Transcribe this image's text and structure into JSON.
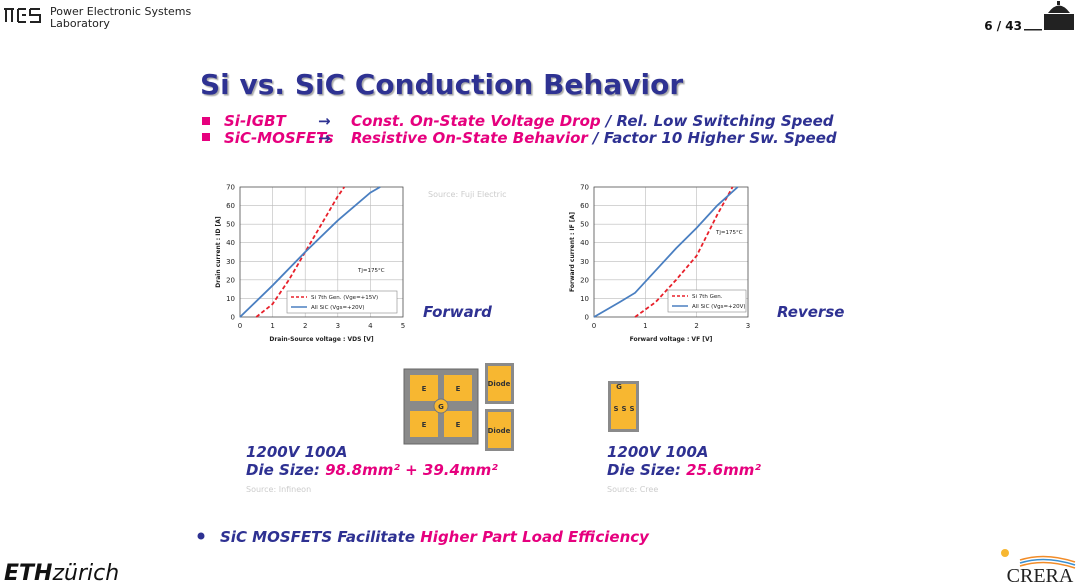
{
  "header": {
    "lab": [
      "Power Electronic Systems",
      "Laboratory"
    ],
    "page": "6 / 43"
  },
  "title": "Si vs. SiC Conduction Behavior",
  "bullets": [
    {
      "term": "Si-IGBT",
      "arrow": "→",
      "highlight": "Const. On-State Voltage Drop",
      "rest": " / Rel. Low Switching Speed"
    },
    {
      "term": "SiC-MOSFETs",
      "arrow": "→",
      "highlight": "Resistive On-State Behavior",
      "rest": " / Factor 10 Higher Sw. Speed"
    }
  ],
  "charts": [
    {
      "type": "line",
      "x_label": "Drain-Source voltage : VDS [V]",
      "y_label": "Drain current : ID [A]",
      "annotation": "Tj=175°C",
      "source": "Source: Fuji Electric",
      "side_label": "Forward",
      "grid": true,
      "xlim": [
        0,
        5
      ],
      "ylim": [
        0,
        70
      ],
      "xticks": [
        0,
        1,
        2,
        3,
        4,
        5
      ],
      "yticks": [
        0,
        10,
        20,
        30,
        40,
        50,
        60,
        70
      ],
      "series": [
        {
          "name": "Si 7th Gen. (Vge=+15V)",
          "color": "#e8202a",
          "dashed": true,
          "x": [
            0.5,
            1,
            1.5,
            2,
            2.5,
            3,
            3.2
          ],
          "values": [
            0,
            7,
            20,
            35,
            50,
            65,
            70
          ]
        },
        {
          "name": "All SiC (Vgs=+20V)",
          "color": "#4a7fc1",
          "dashed": false,
          "x": [
            0,
            1,
            2,
            3,
            4,
            4.3
          ],
          "values": [
            0,
            17,
            35,
            52,
            67,
            70
          ]
        }
      ]
    },
    {
      "type": "line",
      "x_label": "Forward voltage : VF [V]",
      "y_label": "Forward current : IF [A]",
      "annotation": "Tj=175°C",
      "side_label": "Reverse",
      "grid": true,
      "xlim": [
        0,
        3
      ],
      "ylim": [
        0,
        70
      ],
      "xticks": [
        0,
        1,
        2,
        3
      ],
      "yticks": [
        0,
        10,
        20,
        30,
        40,
        50,
        60,
        70
      ],
      "series": [
        {
          "name": "Si 7th Gen.",
          "color": "#e8202a",
          "dashed": true,
          "x": [
            0.8,
            1.2,
            1.6,
            2,
            2.4,
            2.7
          ],
          "values": [
            0,
            8,
            20,
            33,
            55,
            70
          ]
        },
        {
          "name": "All SiC (Vgs=+20V)",
          "color": "#4a7fc1",
          "dashed": false,
          "x": [
            0,
            0.5,
            0.8,
            1.2,
            1.6,
            2,
            2.4,
            2.8
          ],
          "values": [
            0,
            8,
            13,
            25,
            37,
            48,
            60,
            70
          ]
        }
      ]
    }
  ],
  "devices": [
    {
      "rating": "1200V  100A",
      "die_size_label": "Die Size:",
      "die_size": "98.8mm² + 39.4mm²",
      "source": "Source:  Infineon",
      "chips": {
        "emitter": "E",
        "gate": "G",
        "diode": "Diode"
      }
    },
    {
      "rating": "1200V  100A",
      "die_size_label": "Die Size:",
      "die_size": "25.6mm²",
      "source": "Source:  Cree",
      "chips": {
        "gate": "G",
        "source": "S"
      }
    }
  ],
  "conclusion": {
    "text": "SiC MOSFETS Facilitate",
    "highlight": "Higher Part Load Efficiency"
  },
  "footer": {
    "eth": "ETH",
    "zurich": "zürich",
    "crera": "CRERA"
  }
}
